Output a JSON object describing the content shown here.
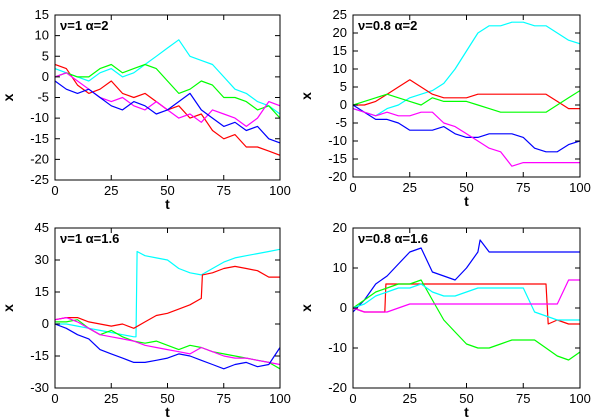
{
  "chart_data": [
    {
      "type": "line",
      "title": "ν=1 α=2",
      "xlabel": "t",
      "ylabel": "x",
      "xlim": [
        0,
        100
      ],
      "ylim": [
        -25,
        15
      ],
      "xticks": [
        "0",
        "25",
        "50",
        "75",
        "100"
      ],
      "yticks": [
        "15",
        "10",
        "5",
        "0",
        "-5",
        "-10",
        "-15",
        "-20",
        "-25"
      ],
      "series": [
        {
          "color": "#00ffff",
          "x": [
            0,
            5,
            10,
            15,
            20,
            25,
            30,
            35,
            40,
            45,
            50,
            55,
            60,
            65,
            70,
            75,
            80,
            85,
            90,
            95,
            100
          ],
          "y": [
            2,
            1,
            0,
            -1,
            1,
            2,
            0,
            1,
            3,
            5,
            7,
            9,
            5,
            4,
            3,
            0,
            -3,
            -4,
            -6,
            -7,
            -9
          ]
        },
        {
          "color": "#ff0000",
          "x": [
            0,
            5,
            10,
            15,
            20,
            25,
            30,
            35,
            40,
            45,
            50,
            55,
            60,
            65,
            70,
            75,
            80,
            85,
            90,
            95,
            100
          ],
          "y": [
            3,
            2,
            -2,
            -4,
            -3,
            -1,
            -4,
            -5,
            -4,
            -6,
            -8,
            -7,
            -10,
            -9,
            -13,
            -15,
            -14,
            -17,
            -17,
            -18,
            -19
          ]
        },
        {
          "color": "#00ff00",
          "x": [
            0,
            5,
            10,
            15,
            20,
            25,
            30,
            35,
            40,
            45,
            50,
            55,
            60,
            65,
            70,
            75,
            80,
            85,
            90,
            95,
            100
          ],
          "y": [
            0,
            1,
            0,
            0,
            2,
            3,
            1,
            2,
            3,
            2,
            -1,
            -4,
            -3,
            -1,
            -2,
            -5,
            -5,
            -6,
            -8,
            -7,
            -10
          ]
        },
        {
          "color": "#ff00ff",
          "x": [
            0,
            5,
            10,
            15,
            20,
            25,
            30,
            35,
            40,
            45,
            50,
            55,
            60,
            65,
            70,
            75,
            80,
            85,
            90,
            95,
            100
          ],
          "y": [
            0,
            1,
            -1,
            -3,
            -5,
            -6,
            -5,
            -7,
            -8,
            -6,
            -8,
            -10,
            -9,
            -11,
            -8,
            -9,
            -10,
            -12,
            -10,
            -6,
            -7
          ]
        },
        {
          "color": "#0000ff",
          "x": [
            0,
            5,
            10,
            15,
            20,
            25,
            30,
            35,
            40,
            45,
            50,
            55,
            60,
            65,
            70,
            75,
            80,
            85,
            90,
            95,
            100
          ],
          "y": [
            -1,
            -3,
            -4,
            -3,
            -5,
            -7,
            -8,
            -6,
            -7,
            -9,
            -8,
            -6,
            -4,
            -8,
            -10,
            -12,
            -11,
            -13,
            -12,
            -15,
            -16
          ]
        }
      ]
    },
    {
      "type": "line",
      "title": "ν=0.8 α=2",
      "xlabel": "t",
      "ylabel": "x",
      "xlim": [
        0,
        100
      ],
      "ylim": [
        -20,
        25
      ],
      "xticks": [
        "0",
        "25",
        "50",
        "75",
        "100"
      ],
      "yticks": [
        "25",
        "20",
        "15",
        "10",
        "5",
        "0",
        "-5",
        "-10",
        "-15",
        "-20"
      ],
      "series": [
        {
          "color": "#00ffff",
          "x": [
            0,
            5,
            10,
            15,
            20,
            25,
            30,
            35,
            40,
            45,
            50,
            55,
            60,
            65,
            70,
            75,
            80,
            85,
            90,
            95,
            100
          ],
          "y": [
            -1,
            -2,
            -3,
            -1,
            0,
            2,
            3,
            4,
            6,
            10,
            15,
            20,
            22,
            22,
            23,
            23,
            22,
            22,
            20,
            18,
            17
          ]
        },
        {
          "color": "#ff0000",
          "x": [
            0,
            5,
            10,
            15,
            20,
            25,
            30,
            35,
            40,
            45,
            50,
            55,
            60,
            65,
            70,
            75,
            80,
            85,
            90,
            95,
            100
          ],
          "y": [
            0,
            0,
            1,
            3,
            5,
            7,
            5,
            3,
            2,
            2,
            2,
            3,
            3,
            3,
            3,
            3,
            3,
            3,
            1,
            -1,
            -1
          ]
        },
        {
          "color": "#00ff00",
          "x": [
            0,
            5,
            10,
            15,
            20,
            25,
            30,
            35,
            40,
            45,
            50,
            55,
            60,
            65,
            70,
            75,
            80,
            85,
            90,
            95,
            100
          ],
          "y": [
            0,
            1,
            2,
            3,
            2,
            1,
            0,
            2,
            1,
            1,
            1,
            0,
            -1,
            -2,
            -2,
            -2,
            -2,
            -2,
            0,
            2,
            4
          ]
        },
        {
          "color": "#0000ff",
          "x": [
            0,
            5,
            10,
            15,
            20,
            25,
            30,
            35,
            40,
            45,
            50,
            55,
            60,
            65,
            70,
            75,
            80,
            85,
            90,
            95,
            100
          ],
          "y": [
            0,
            -2,
            -4,
            -4,
            -5,
            -7,
            -7,
            -7,
            -6,
            -8,
            -9,
            -9,
            -8,
            -8,
            -8,
            -9,
            -12,
            -13,
            -13,
            -11,
            -10
          ]
        },
        {
          "color": "#ff00ff",
          "x": [
            0,
            5,
            10,
            15,
            20,
            25,
            30,
            35,
            40,
            45,
            50,
            55,
            60,
            65,
            70,
            75,
            80,
            85,
            90,
            95,
            100
          ],
          "y": [
            -1,
            -2,
            -3,
            -2,
            -3,
            -3,
            -2,
            -2,
            -5,
            -6,
            -8,
            -10,
            -12,
            -13,
            -17,
            -16,
            -16,
            -16,
            -16,
            -16,
            -16
          ]
        }
      ]
    },
    {
      "type": "line",
      "title": "ν=1 α=1.6",
      "xlabel": "t",
      "ylabel": "x",
      "xlim": [
        0,
        100
      ],
      "ylim": [
        -30,
        45
      ],
      "xticks": [
        "0",
        "25",
        "50",
        "75",
        "100"
      ],
      "yticks": [
        "45",
        "30",
        "15",
        "0",
        "-15",
        "-30"
      ],
      "series": [
        {
          "color": "#00ffff",
          "x": [
            0,
            5,
            10,
            15,
            20,
            25,
            30,
            35,
            36,
            36.5,
            40,
            45,
            50,
            55,
            60,
            65,
            70,
            75,
            80,
            85,
            90,
            95,
            100
          ],
          "y": [
            0,
            0,
            -1,
            -2,
            -3,
            -4,
            -5,
            -6,
            -6,
            34,
            32,
            31,
            30,
            26,
            24,
            23,
            26,
            29,
            31,
            32,
            33,
            34,
            35
          ]
        },
        {
          "color": "#ff0000",
          "x": [
            0,
            5,
            10,
            15,
            20,
            25,
            30,
            35,
            40,
            45,
            50,
            55,
            60,
            65,
            65.5,
            70,
            75,
            80,
            85,
            90,
            95,
            100
          ],
          "y": [
            2,
            3,
            3,
            1,
            0,
            -1,
            0,
            -2,
            1,
            4,
            5,
            7,
            9,
            12,
            23,
            24,
            26,
            27,
            26,
            25,
            22,
            22
          ]
        },
        {
          "color": "#00ff00",
          "x": [
            0,
            5,
            10,
            15,
            20,
            25,
            30,
            35,
            40,
            45,
            50,
            55,
            60,
            65,
            70,
            75,
            80,
            85,
            90,
            95,
            100
          ],
          "y": [
            1,
            1,
            2,
            -2,
            -5,
            -3,
            -6,
            -8,
            -9,
            -8,
            -10,
            -12,
            -10,
            -11,
            -13,
            -14,
            -15,
            -16,
            -17,
            -18,
            -21
          ]
        },
        {
          "color": "#ff00ff",
          "x": [
            0,
            5,
            10,
            15,
            20,
            25,
            30,
            35,
            40,
            45,
            50,
            55,
            60,
            65,
            70,
            75,
            80,
            85,
            90,
            95,
            100
          ],
          "y": [
            2,
            3,
            1,
            -2,
            -5,
            -6,
            -7,
            -8,
            -10,
            -11,
            -12,
            -13,
            -14,
            -11,
            -13,
            -15,
            -16,
            -16,
            -17,
            -18,
            -19
          ]
        },
        {
          "color": "#0000ff",
          "x": [
            0,
            5,
            10,
            15,
            20,
            25,
            30,
            35,
            40,
            45,
            50,
            55,
            60,
            65,
            70,
            75,
            80,
            85,
            90,
            95,
            100
          ],
          "y": [
            0,
            -2,
            -5,
            -7,
            -12,
            -14,
            -16,
            -18,
            -18,
            -17,
            -16,
            -14,
            -15,
            -17,
            -19,
            -21,
            -19,
            -18,
            -20,
            -19,
            -11
          ]
        }
      ]
    },
    {
      "type": "line",
      "title": "ν=0.8 α=1.6",
      "xlabel": "t",
      "ylabel": "x",
      "xlim": [
        0,
        100
      ],
      "ylim": [
        -20,
        20
      ],
      "xticks": [
        "0",
        "25",
        "50",
        "75",
        "100"
      ],
      "yticks": [
        "20",
        "10",
        "0",
        "-10",
        "-20"
      ],
      "series": [
        {
          "color": "#0000ff",
          "x": [
            0,
            5,
            10,
            15,
            20,
            25,
            30,
            35,
            40,
            45,
            50,
            55,
            56,
            60,
            70,
            80,
            90,
            100
          ],
          "y": [
            -1,
            2,
            6,
            8,
            11,
            14,
            15,
            9,
            8,
            7,
            10,
            14,
            17,
            14,
            14,
            14,
            14,
            14
          ]
        },
        {
          "color": "#ff0000",
          "x": [
            0,
            5,
            10,
            14,
            14.5,
            20,
            30,
            40,
            50,
            60,
            70,
            80,
            85,
            86,
            90,
            95,
            100
          ],
          "y": [
            0,
            -1,
            -1,
            -1,
            6,
            6,
            6,
            6,
            6,
            6,
            6,
            6,
            6,
            -4,
            -3,
            -4,
            -4
          ]
        },
        {
          "color": "#00ff00",
          "x": [
            0,
            5,
            10,
            15,
            20,
            25,
            30,
            35,
            40,
            45,
            50,
            55,
            60,
            65,
            70,
            75,
            80,
            85,
            90,
            95,
            100
          ],
          "y": [
            0,
            2,
            4,
            5,
            6,
            6,
            7,
            2,
            -3,
            -6,
            -9,
            -10,
            -10,
            -9,
            -8,
            -8,
            -8,
            -10,
            -12,
            -13,
            -11
          ]
        },
        {
          "color": "#00ffff",
          "x": [
            0,
            5,
            10,
            15,
            20,
            25,
            30,
            35,
            40,
            45,
            50,
            55,
            60,
            65,
            70,
            75,
            80,
            85,
            90,
            95,
            100
          ],
          "y": [
            0,
            1,
            3,
            4,
            5,
            5,
            6,
            4,
            3,
            3,
            4,
            5,
            5,
            5,
            5,
            5,
            -1,
            -2,
            -3,
            -3,
            -3
          ]
        },
        {
          "color": "#ff00ff",
          "x": [
            0,
            5,
            10,
            15,
            20,
            25,
            30,
            35,
            40,
            45,
            50,
            55,
            60,
            65,
            70,
            75,
            80,
            85,
            90,
            95,
            100
          ],
          "y": [
            0,
            -1,
            -1,
            -1,
            0,
            1,
            1,
            1,
            1,
            1,
            1,
            1,
            1,
            1,
            1,
            1,
            1,
            1,
            1,
            7,
            7
          ]
        }
      ]
    }
  ]
}
